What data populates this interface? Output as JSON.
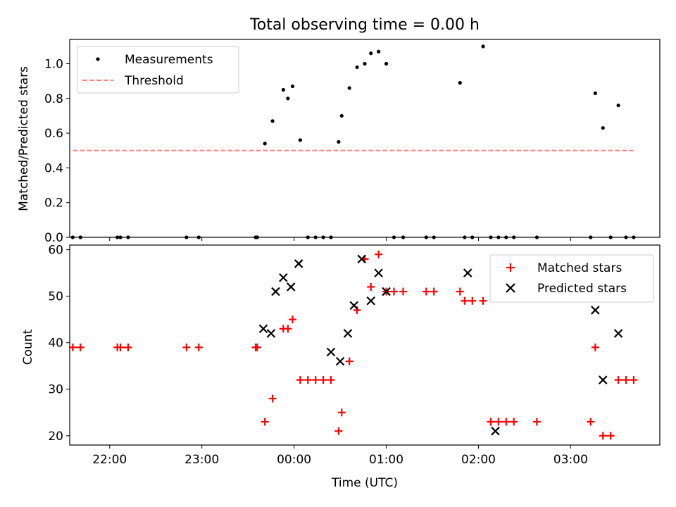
{
  "title": "Total observing time = 0.00 h",
  "chart_data": [
    {
      "type": "scatter",
      "ylabel": "Matched/Predicted stars",
      "xlabel": "",
      "xlim": [
        "21:34",
        "03:58"
      ],
      "ylim": [
        0,
        1.14
      ],
      "yticks": [
        "0.0",
        "0.2",
        "0.4",
        "0.6",
        "0.8",
        "1.0"
      ],
      "grid": false,
      "legend_position": "top-left",
      "legend": [
        "Measurements",
        "Threshold"
      ],
      "colors": {
        "measurements": "#000000",
        "threshold": "#ff7f7f"
      },
      "series": [
        {
          "name": "Measurements",
          "x": [
            "21:36",
            "21:41",
            "22:05",
            "22:07",
            "22:12",
            "22:50",
            "22:58",
            "23:35",
            "23:36",
            "23:41",
            "23:46",
            "23:53",
            "23:56",
            "23:59",
            "00:04",
            "00:09",
            "00:14",
            "00:19",
            "00:24",
            "00:29",
            "00:31",
            "00:36",
            "00:41",
            "00:46",
            "00:50",
            "00:55",
            "01:00",
            "01:05",
            "01:11",
            "01:26",
            "01:31",
            "01:48",
            "01:51",
            "01:56",
            "02:03",
            "02:08",
            "02:13",
            "02:18",
            "02:23",
            "02:38",
            "03:13",
            "03:16",
            "03:21",
            "03:26",
            "03:31",
            "03:36",
            "03:41"
          ],
          "y": [
            0,
            0,
            0,
            0,
            0,
            0,
            0,
            0,
            0,
            0.54,
            0.67,
            0.85,
            0.8,
            0.87,
            0.56,
            0,
            0,
            0,
            0,
            0.55,
            0.7,
            0.86,
            0.98,
            1.0,
            1.06,
            1.07,
            1.0,
            0,
            0,
            0,
            0,
            0.89,
            0,
            0,
            1.1,
            0,
            0,
            0,
            0,
            0,
            0,
            0.83,
            0.63,
            0,
            0.76,
            0,
            0
          ]
        },
        {
          "name": "Threshold",
          "x": [
            "21:36",
            "03:41"
          ],
          "y": [
            0.5,
            0.5
          ]
        }
      ]
    },
    {
      "type": "scatter",
      "ylabel": "Count",
      "xlabel": "Time (UTC)",
      "xlim": [
        "21:34",
        "03:58"
      ],
      "ylim": [
        18,
        61
      ],
      "yticks": [
        "20",
        "30",
        "40",
        "50",
        "60"
      ],
      "xticks": [
        "22:00",
        "23:00",
        "00:00",
        "01:00",
        "02:00",
        "03:00"
      ],
      "grid": false,
      "legend_position": "top-right",
      "legend": [
        "Matched stars",
        "Predicted stars"
      ],
      "colors": {
        "matched": "#ff0000",
        "predicted": "#000000"
      },
      "series": [
        {
          "name": "Matched stars",
          "x": [
            "21:36",
            "21:41",
            "22:05",
            "22:07",
            "22:12",
            "22:50",
            "22:58",
            "23:35",
            "23:36",
            "23:41",
            "23:46",
            "23:53",
            "23:56",
            "23:59",
            "00:04",
            "00:09",
            "00:14",
            "00:19",
            "00:24",
            "00:29",
            "00:31",
            "00:36",
            "00:41",
            "00:46",
            "00:50",
            "00:55",
            "01:00",
            "01:05",
            "01:11",
            "01:26",
            "01:31",
            "01:48",
            "01:51",
            "01:56",
            "02:03",
            "02:08",
            "02:13",
            "02:18",
            "02:23",
            "02:38",
            "03:13",
            "03:16",
            "03:21",
            "03:26",
            "03:31",
            "03:36",
            "03:41"
          ],
          "y": [
            39,
            39,
            39,
            39,
            39,
            39,
            39,
            39,
            39,
            23,
            28,
            43,
            43,
            45,
            32,
            32,
            32,
            32,
            32,
            21,
            25,
            36,
            47,
            58,
            52,
            59,
            51,
            51,
            51,
            51,
            51,
            51,
            49,
            49,
            49,
            23,
            23,
            23,
            23,
            23,
            23,
            39,
            20,
            20,
            32,
            32,
            32
          ]
        },
        {
          "name": "Predicted stars",
          "x": [
            "23:40",
            "23:45",
            "23:48",
            "23:53",
            "23:58",
            "00:03",
            "00:24",
            "00:30",
            "00:35",
            "00:39",
            "00:44",
            "00:50",
            "00:55",
            "01:00",
            "01:53",
            "02:11",
            "03:16",
            "03:21",
            "03:31"
          ],
          "y": [
            43,
            42,
            51,
            54,
            52,
            57,
            38,
            36,
            42,
            48,
            58,
            49,
            55,
            51,
            55,
            21,
            47,
            32,
            42
          ]
        }
      ]
    }
  ]
}
